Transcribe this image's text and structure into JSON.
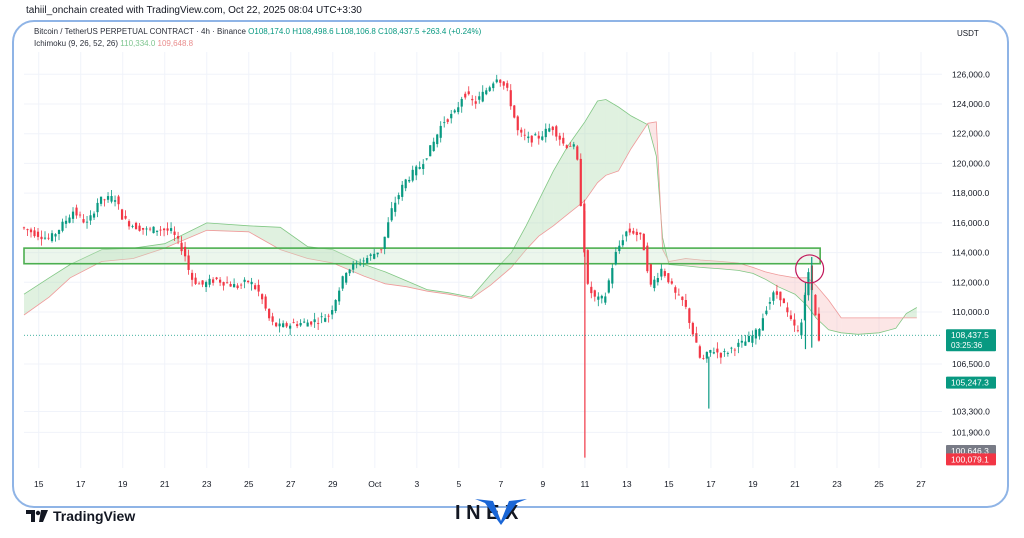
{
  "header": {
    "credit": "tahiil_onchain created with TradingView.com, Oct 22, 2025 08:04 UTC+3:30"
  },
  "legend": {
    "symbol": "Bitcoin / TetherUS PERPETUAL CONTRACT · 4h · Binance",
    "ohlc": "O108,174.0 H108,498.6 L108,106.8 C108,437.5 +263.4 (+0.24%)",
    "indicator": "Ichimoku (9, 26, 52, 26)",
    "indicator_val1": "110,334.0",
    "indicator_val2": "109,648.8",
    "unit": "USDT"
  },
  "colors": {
    "up": "#089981",
    "down": "#f23645",
    "cloud_bull": "#a5d6a7",
    "cloud_bear": "#f7b6b6",
    "lead_a": "#81c784",
    "lead_b": "#ef9a9a",
    "zone": "#4caf50",
    "frame": "#8fb4e6"
  },
  "chart_data": {
    "type": "candlestick",
    "ylim": [
      99500,
      127500
    ],
    "yticks": [
      "126,000.0",
      "124,000.0",
      "122,000.0",
      "120,000.0",
      "118,000.0",
      "116,000.0",
      "114,000.0",
      "112,000.0",
      "110,000.0",
      "106,500.0",
      "103,300.0",
      "101,900.0"
    ],
    "ytick_values": [
      126000,
      124000,
      122000,
      120000,
      118000,
      116000,
      114000,
      112000,
      110000,
      106500,
      103300,
      101900
    ],
    "xlim": [
      14.3,
      58.0
    ],
    "xticks": [
      {
        "x": 15,
        "label": "15"
      },
      {
        "x": 17,
        "label": "17"
      },
      {
        "x": 19,
        "label": "19"
      },
      {
        "x": 21,
        "label": "21"
      },
      {
        "x": 23,
        "label": "23"
      },
      {
        "x": 25,
        "label": "25"
      },
      {
        "x": 27,
        "label": "27"
      },
      {
        "x": 29,
        "label": "29"
      },
      {
        "x": 31,
        "label": "Oct"
      },
      {
        "x": 33,
        "label": "3"
      },
      {
        "x": 35,
        "label": "5"
      },
      {
        "x": 37,
        "label": "7"
      },
      {
        "x": 39,
        "label": "9"
      },
      {
        "x": 41,
        "label": "11"
      },
      {
        "x": 43,
        "label": "13"
      },
      {
        "x": 45,
        "label": "15"
      },
      {
        "x": 47,
        "label": "17"
      },
      {
        "x": 49,
        "label": "19"
      },
      {
        "x": 51,
        "label": "21"
      },
      {
        "x": 53,
        "label": "23"
      },
      {
        "x": 55,
        "label": "25"
      },
      {
        "x": 57,
        "label": "27"
      }
    ],
    "last_price": 108437.5,
    "price_labels": [
      {
        "value": 108437.5,
        "text": "108,437.5",
        "sub": "03:25:36",
        "color": "#089981"
      },
      {
        "value": 105247.3,
        "text": "105,247.3",
        "sub": "",
        "color": "#089981"
      },
      {
        "value": 100646.3,
        "text": "100,646.3",
        "sub": "",
        "color": "#787b86"
      },
      {
        "value": 100079.1,
        "text": "100,079.1",
        "sub": "",
        "color": "#f23645"
      }
    ],
    "zone": {
      "x0": 14.3,
      "x1": 52.2,
      "low": 113250,
      "high": 114300
    },
    "marker": {
      "x": 51.7,
      "y": 112900
    },
    "path": [
      [
        14.3,
        115700
      ],
      [
        15.0,
        115300
      ],
      [
        15.7,
        114900
      ],
      [
        16.2,
        115700
      ],
      [
        16.8,
        116800
      ],
      [
        17.5,
        115900
      ],
      [
        18.0,
        117500
      ],
      [
        18.8,
        117700
      ],
      [
        19.2,
        116200
      ],
      [
        19.7,
        115800
      ],
      [
        20.3,
        115500
      ],
      [
        21.0,
        115600
      ],
      [
        21.5,
        115400
      ],
      [
        22.1,
        114000
      ],
      [
        22.4,
        112300
      ],
      [
        22.9,
        111800
      ],
      [
        23.6,
        112200
      ],
      [
        24.0,
        112000
      ],
      [
        24.6,
        111700
      ],
      [
        25.2,
        112100
      ],
      [
        25.7,
        111200
      ],
      [
        26.2,
        109300
      ],
      [
        26.6,
        109000
      ],
      [
        27.3,
        109200
      ],
      [
        28.0,
        109300
      ],
      [
        28.5,
        109500
      ],
      [
        29.0,
        109800
      ],
      [
        29.4,
        111300
      ],
      [
        29.8,
        112800
      ],
      [
        30.4,
        113300
      ],
      [
        31.0,
        113800
      ],
      [
        31.5,
        114300
      ],
      [
        32.0,
        117000
      ],
      [
        32.6,
        118800
      ],
      [
        33.3,
        119800
      ],
      [
        33.9,
        121200
      ],
      [
        34.4,
        122800
      ],
      [
        35.0,
        123400
      ],
      [
        35.4,
        124800
      ],
      [
        35.9,
        124000
      ],
      [
        36.5,
        125000
      ],
      [
        37.0,
        125900
      ],
      [
        37.5,
        124800
      ],
      [
        38.0,
        122000
      ],
      [
        38.5,
        121600
      ],
      [
        39.0,
        121800
      ],
      [
        39.6,
        122500
      ],
      [
        40.2,
        121200
      ],
      [
        40.6,
        121300
      ],
      [
        40.9,
        119500
      ],
      [
        41.0,
        116500
      ],
      [
        41.1,
        114800
      ],
      [
        41.3,
        111700
      ],
      [
        41.7,
        110800
      ],
      [
        42.1,
        110900
      ],
      [
        42.6,
        113800
      ],
      [
        43.1,
        115400
      ],
      [
        43.5,
        115400
      ],
      [
        43.9,
        114900
      ],
      [
        44.3,
        111700
      ],
      [
        44.8,
        112900
      ],
      [
        45.1,
        112300
      ],
      [
        45.5,
        111100
      ],
      [
        45.9,
        110600
      ],
      [
        46.3,
        108600
      ],
      [
        46.7,
        106600
      ],
      [
        47.2,
        107500
      ],
      [
        47.7,
        107100
      ],
      [
        48.2,
        107600
      ],
      [
        48.7,
        107900
      ],
      [
        49.0,
        108200
      ],
      [
        49.4,
        108700
      ],
      [
        49.8,
        110300
      ],
      [
        50.2,
        111300
      ],
      [
        50.5,
        111000
      ],
      [
        50.9,
        109500
      ],
      [
        51.4,
        108400
      ],
      [
        51.8,
        113000
      ],
      [
        52.3,
        108200
      ]
    ],
    "wicks": [
      {
        "x": 41.0,
        "high": 116800,
        "low": 100200
      },
      {
        "x": 46.9,
        "high": 107000,
        "low": 103500
      },
      {
        "x": 51.8,
        "high": 113700,
        "low": 107600
      },
      {
        "x": 51.5,
        "high": 112000,
        "low": 107500
      }
    ],
    "lead_a": [
      [
        14.3,
        111200
      ],
      [
        15.5,
        112300
      ],
      [
        16.5,
        113200
      ],
      [
        18.0,
        114200
      ],
      [
        19.5,
        114300
      ],
      [
        21.0,
        114600
      ],
      [
        23.0,
        116000
      ],
      [
        25.0,
        115800
      ],
      [
        26.5,
        115700
      ],
      [
        27.8,
        114400
      ],
      [
        29.0,
        114200
      ],
      [
        30.5,
        113200
      ],
      [
        31.5,
        112700
      ],
      [
        32.5,
        112100
      ],
      [
        33.5,
        111500
      ],
      [
        34.5,
        111300
      ],
      [
        35.6,
        111000
      ],
      [
        36.5,
        112500
      ],
      [
        37.5,
        114000
      ],
      [
        38.2,
        115800
      ],
      [
        38.8,
        117500
      ],
      [
        39.5,
        119500
      ],
      [
        40.2,
        121200
      ],
      [
        41.0,
        122800
      ],
      [
        41.6,
        124200
      ],
      [
        42.0,
        124300
      ],
      [
        42.6,
        123800
      ],
      [
        43.2,
        123200
      ],
      [
        44.0,
        122600
      ],
      [
        44.4,
        120500
      ],
      [
        44.7,
        115000
      ],
      [
        45.0,
        113200
      ],
      [
        45.8,
        113100
      ],
      [
        46.5,
        113000
      ],
      [
        47.5,
        112900
      ],
      [
        48.3,
        112800
      ],
      [
        49.0,
        112600
      ],
      [
        49.6,
        112200
      ],
      [
        50.2,
        111700
      ],
      [
        51.0,
        111200
      ],
      [
        51.6,
        110400
      ],
      [
        52.0,
        109600
      ],
      [
        52.6,
        108800
      ],
      [
        53.2,
        108600
      ],
      [
        54.0,
        108500
      ],
      [
        55.0,
        108600
      ],
      [
        55.8,
        108900
      ],
      [
        56.3,
        109900
      ],
      [
        56.8,
        110300
      ]
    ],
    "lead_b": [
      [
        14.3,
        109800
      ],
      [
        15.5,
        111000
      ],
      [
        16.5,
        112300
      ],
      [
        18.0,
        113400
      ],
      [
        19.5,
        113600
      ],
      [
        21.0,
        114300
      ],
      [
        23.0,
        115500
      ],
      [
        25.0,
        115400
      ],
      [
        26.5,
        114200
      ],
      [
        27.8,
        113600
      ],
      [
        29.0,
        113300
      ],
      [
        30.5,
        112400
      ],
      [
        31.5,
        111900
      ],
      [
        32.5,
        111700
      ],
      [
        33.5,
        111400
      ],
      [
        34.5,
        111200
      ],
      [
        35.6,
        110900
      ],
      [
        36.5,
        111800
      ],
      [
        37.5,
        113000
      ],
      [
        38.2,
        114200
      ],
      [
        38.8,
        115100
      ],
      [
        39.5,
        115800
      ],
      [
        40.2,
        116600
      ],
      [
        41.0,
        117500
      ],
      [
        41.6,
        118700
      ],
      [
        42.0,
        119200
      ],
      [
        42.6,
        119500
      ],
      [
        43.2,
        121000
      ],
      [
        44.0,
        122700
      ],
      [
        44.4,
        122800
      ],
      [
        44.7,
        114200
      ],
      [
        45.0,
        113400
      ],
      [
        45.8,
        113600
      ],
      [
        46.5,
        113500
      ],
      [
        47.5,
        113400
      ],
      [
        48.3,
        113300
      ],
      [
        49.0,
        113000
      ],
      [
        49.6,
        112700
      ],
      [
        50.2,
        112500
      ],
      [
        51.0,
        112300
      ],
      [
        51.6,
        112300
      ],
      [
        52.0,
        111800
      ],
      [
        52.6,
        110800
      ],
      [
        53.2,
        109600
      ],
      [
        54.0,
        109600
      ],
      [
        55.0,
        109600
      ],
      [
        55.8,
        109600
      ],
      [
        56.3,
        109600
      ],
      [
        56.8,
        109600
      ]
    ]
  },
  "footer": {
    "tv_brand": "TradingView",
    "watermark": "INVEX"
  }
}
